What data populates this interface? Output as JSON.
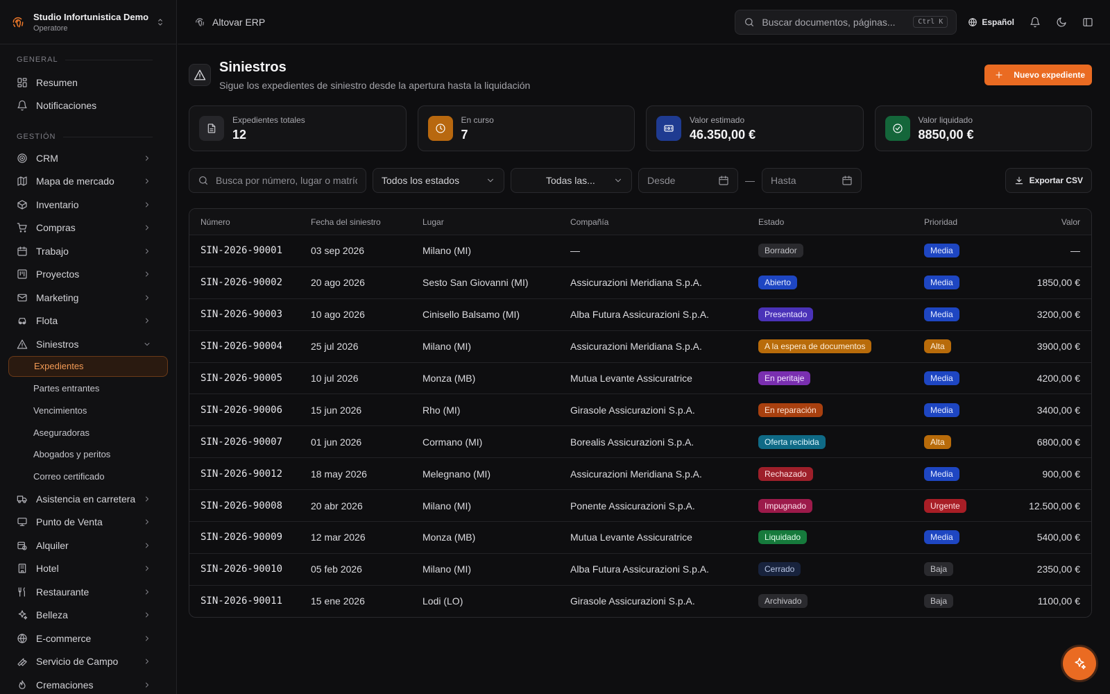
{
  "org": {
    "name": "Studio Infortunistica Demo",
    "role": "Operatore"
  },
  "sidebar": {
    "section_general": "GENERAL",
    "general_items": [
      {
        "label": "Resumen",
        "icon": "dashboard-icon"
      },
      {
        "label": "Notificaciones",
        "icon": "bell-icon"
      }
    ],
    "section_manage": "GESTIÓN",
    "manage_items": [
      {
        "label": "CRM"
      },
      {
        "label": "Mapa de mercado"
      },
      {
        "label": "Inventario"
      },
      {
        "label": "Compras"
      },
      {
        "label": "Trabajo"
      },
      {
        "label": "Proyectos"
      },
      {
        "label": "Marketing"
      },
      {
        "label": "Flota"
      },
      {
        "label": "Siniestros"
      }
    ],
    "claims_sub": [
      {
        "label": "Expedientes"
      },
      {
        "label": "Partes entrantes"
      },
      {
        "label": "Vencimientos"
      },
      {
        "label": "Aseguradoras"
      },
      {
        "label": "Abogados y peritos"
      },
      {
        "label": "Correo certificado"
      }
    ],
    "more_items": [
      {
        "label": "Asistencia en carretera"
      },
      {
        "label": "Punto de Venta"
      },
      {
        "label": "Alquiler"
      },
      {
        "label": "Hotel"
      },
      {
        "label": "Restaurante"
      },
      {
        "label": "Belleza"
      },
      {
        "label": "E-commerce"
      },
      {
        "label": "Servicio de Campo"
      },
      {
        "label": "Cremaciones"
      }
    ]
  },
  "topbar": {
    "breadcrumb": "Altovar ERP",
    "search_placeholder": "Buscar documentos, páginas...",
    "shortcut": "Ctrl K",
    "language": "Español"
  },
  "page": {
    "title": "Siniestros",
    "subtitle": "Sigue los expedientes de siniestro desde la apertura hasta la liquidación",
    "new_button": "Nuevo expediente"
  },
  "stats": [
    {
      "label": "Expedientes totales",
      "value": "12",
      "icon": "document-icon",
      "bg": "#26262a",
      "fg": "#c8c8cd"
    },
    {
      "label": "En curso",
      "value": "7",
      "icon": "clock-icon",
      "bg": "#b8680f",
      "fg": "#ffffff"
    },
    {
      "label": "Valor estimado",
      "value": "46.350,00 €",
      "icon": "banknote-icon",
      "bg": "#1f3b91",
      "fg": "#ffffff"
    },
    {
      "label": "Valor liquidado",
      "value": "8850,00 €",
      "icon": "check-circle-icon",
      "bg": "#14663a",
      "fg": "#ffffff"
    }
  ],
  "filters": {
    "search_placeholder": "Busca por número, lugar o matrícula",
    "status_value": "Todos los estados",
    "company_value": "Todas las...",
    "from_placeholder": "Desde",
    "to_placeholder": "Hasta",
    "dash": "—",
    "export_label": "Exportar CSV"
  },
  "table": {
    "headers": [
      "Número",
      "Fecha del siniestro",
      "Lugar",
      "Compañía",
      "Estado",
      "Prioridad",
      "Valor"
    ],
    "rows": [
      {
        "num": "SIN-2026-90001",
        "date": "03 sep 2026",
        "place": "Milano (MI)",
        "company": "—",
        "status": "Borrador",
        "status_bg": "#2a2a2e",
        "status_fg": "#c4c4c9",
        "priority": "Media",
        "prio_bg": "#1e46c2",
        "prio_fg": "#e6ecff",
        "value": "—"
      },
      {
        "num": "SIN-2026-90002",
        "date": "20 ago 2026",
        "place": "Sesto San Giovanni (MI)",
        "company": "Assicurazioni Meridiana S.p.A.",
        "status": "Abierto",
        "status_bg": "#1e46c2",
        "status_fg": "#e6ecff",
        "priority": "Media",
        "prio_bg": "#1e46c2",
        "prio_fg": "#e6ecff",
        "value": "1850,00 €"
      },
      {
        "num": "SIN-2026-90003",
        "date": "10 ago 2026",
        "place": "Cinisello Balsamo (MI)",
        "company": "Alba Futura Assicurazioni S.p.A.",
        "status": "Presentado",
        "status_bg": "#4a32b8",
        "status_fg": "#ebe6ff",
        "priority": "Media",
        "prio_bg": "#1e46c2",
        "prio_fg": "#e6ecff",
        "value": "3200,00 €"
      },
      {
        "num": "SIN-2026-90004",
        "date": "25 jul 2026",
        "place": "Milano (MI)",
        "company": "Assicurazioni Meridiana S.p.A.",
        "status": "A la espera de documentos",
        "status_bg": "#b86b0a",
        "status_fg": "#fff0dc",
        "priority": "Alta",
        "prio_bg": "#b86b0a",
        "prio_fg": "#fff0dc",
        "value": "3900,00 €"
      },
      {
        "num": "SIN-2026-90005",
        "date": "10 jul 2026",
        "place": "Monza (MB)",
        "company": "Mutua Levante Assicuratrice",
        "status": "En peritaje",
        "status_bg": "#7a2fb0",
        "status_fg": "#f3e6ff",
        "priority": "Media",
        "prio_bg": "#1e46c2",
        "prio_fg": "#e6ecff",
        "value": "4200,00 €"
      },
      {
        "num": "SIN-2026-90006",
        "date": "15 jun 2026",
        "place": "Rho (MI)",
        "company": "Girasole Assicurazioni S.p.A.",
        "status": "En reparación",
        "status_bg": "#a8400f",
        "status_fg": "#ffe6d8",
        "priority": "Media",
        "prio_bg": "#1e46c2",
        "prio_fg": "#e6ecff",
        "value": "3400,00 €"
      },
      {
        "num": "SIN-2026-90007",
        "date": "01 jun 2026",
        "place": "Cormano (MI)",
        "company": "Borealis Assicurazioni S.p.A.",
        "status": "Oferta recibida",
        "status_bg": "#0f6a86",
        "status_fg": "#dcf6ff",
        "priority": "Alta",
        "prio_bg": "#b86b0a",
        "prio_fg": "#fff0dc",
        "value": "6800,00 €"
      },
      {
        "num": "SIN-2026-90012",
        "date": "18 may 2026",
        "place": "Melegnano (MI)",
        "company": "Assicurazioni Meridiana S.p.A.",
        "status": "Rechazado",
        "status_bg": "#9e1f2a",
        "status_fg": "#ffe2e5",
        "priority": "Media",
        "prio_bg": "#1e46c2",
        "prio_fg": "#e6ecff",
        "value": "900,00 €"
      },
      {
        "num": "SIN-2026-90008",
        "date": "20 abr 2026",
        "place": "Milano (MI)",
        "company": "Ponente Assicurazioni S.p.A.",
        "status": "Impugnado",
        "status_bg": "#9c1a4a",
        "status_fg": "#ffe2ee",
        "priority": "Urgente",
        "prio_bg": "#a81e26",
        "prio_fg": "#ffe2e4",
        "value": "12.500,00 €"
      },
      {
        "num": "SIN-2026-90009",
        "date": "12 mar 2026",
        "place": "Monza (MB)",
        "company": "Mutua Levante Assicuratrice",
        "status": "Liquidado",
        "status_bg": "#167a3c",
        "status_fg": "#e2ffec",
        "priority": "Media",
        "prio_bg": "#1e46c2",
        "prio_fg": "#e6ecff",
        "value": "5400,00 €"
      },
      {
        "num": "SIN-2026-90010",
        "date": "05 feb 2026",
        "place": "Milano (MI)",
        "company": "Alba Futura Assicurazioni S.p.A.",
        "status": "Cerrado",
        "status_bg": "#18233d",
        "status_fg": "#b9c6e4",
        "priority": "Baja",
        "prio_bg": "#2a2a2e",
        "prio_fg": "#c4c4c9",
        "value": "2350,00 €"
      },
      {
        "num": "SIN-2026-90011",
        "date": "15 ene 2026",
        "place": "Lodi (LO)",
        "company": "Girasole Assicurazioni S.p.A.",
        "status": "Archivado",
        "status_bg": "#2a2a2e",
        "status_fg": "#c4c4c9",
        "priority": "Baja",
        "prio_bg": "#2a2a2e",
        "prio_fg": "#c4c4c9",
        "value": "1100,00 €"
      }
    ]
  },
  "colors": {
    "accent": "#ea6b22",
    "background": "#0e0e10"
  }
}
